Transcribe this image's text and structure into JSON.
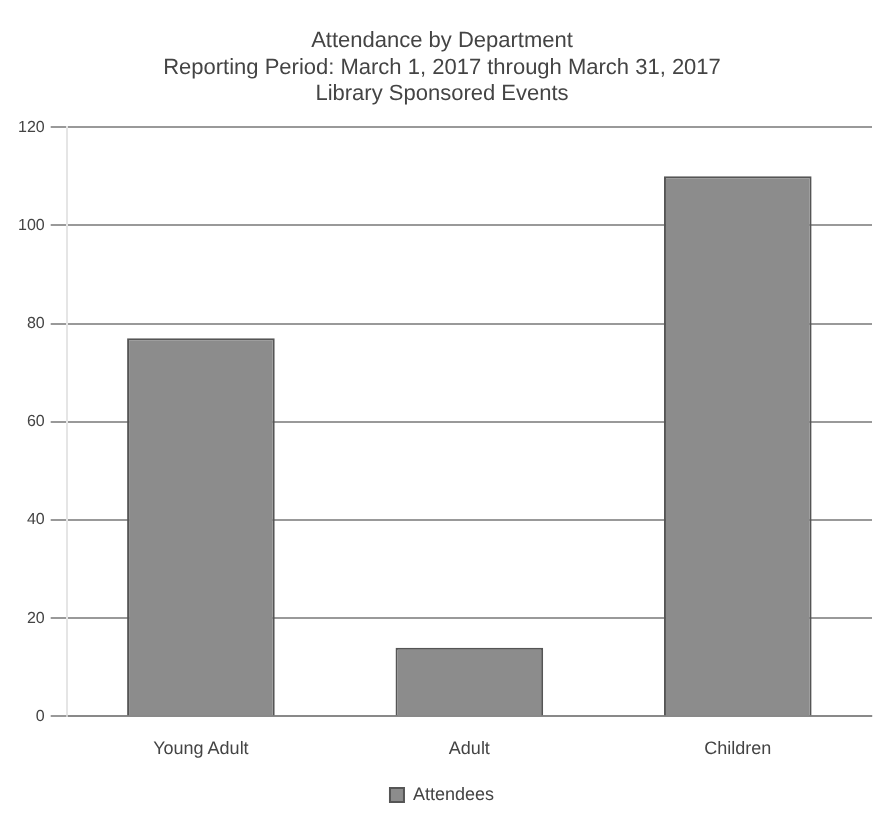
{
  "chart_data": {
    "type": "bar",
    "title": "Attendance by Department",
    "subtitle": "Reporting Period: March 1, 2017 through March 31, 2017\nLibrary Sponsored Events",
    "categories": [
      "Young Adult",
      "Adult",
      "Children"
    ],
    "series": [
      {
        "name": "Attendees",
        "color": "#8c8c8c",
        "values": [
          77,
          14,
          110
        ]
      }
    ],
    "ylim": [
      0,
      120
    ],
    "yticks": [
      0,
      20,
      40,
      60,
      80,
      100,
      120
    ],
    "grid": "y",
    "legend": "bottom"
  }
}
